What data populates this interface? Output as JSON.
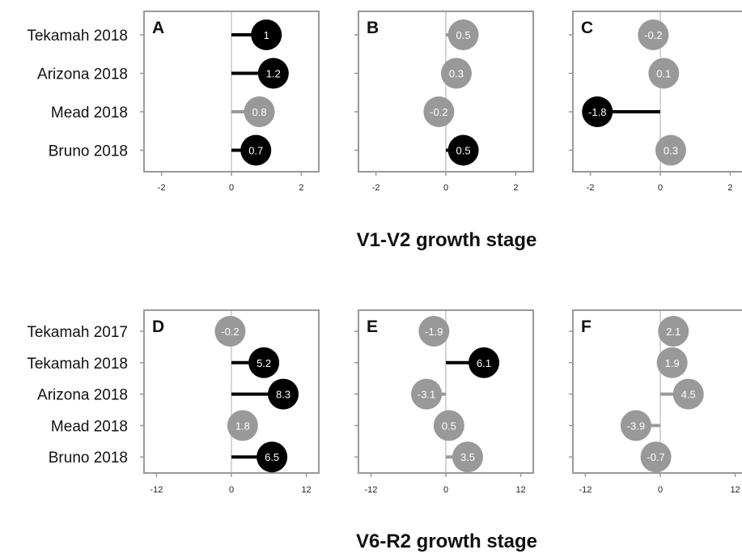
{
  "colors": {
    "significant": "#000000",
    "not_significant": "#999999"
  },
  "chart_data": [
    {
      "type": "lollipop",
      "group_title": "V1-V2 growth stage",
      "xlim": [
        -2.5,
        2.5
      ],
      "xticks": [
        -2,
        0,
        2
      ],
      "categories": [
        "Tekamah 2018",
        "Arizona 2018",
        "Mead 2018",
        "Bruno 2018"
      ],
      "panels": [
        {
          "label": "A",
          "values": [
            1,
            1.2,
            0.8,
            0.7
          ],
          "value_labels": [
            "1",
            "1.2",
            "0.8",
            "0.7"
          ],
          "significant": [
            true,
            true,
            false,
            true
          ]
        },
        {
          "label": "B",
          "values": [
            0.5,
            0.3,
            -0.2,
            0.5
          ],
          "value_labels": [
            "0.5",
            "0.3",
            "-0.2",
            "0.5"
          ],
          "significant": [
            false,
            false,
            false,
            true
          ]
        },
        {
          "label": "C",
          "values": [
            -0.2,
            0.1,
            -1.8,
            0.3
          ],
          "value_labels": [
            "-0.2",
            "0.1",
            "-1.8",
            "0.3"
          ],
          "significant": [
            false,
            false,
            true,
            false
          ]
        }
      ]
    },
    {
      "type": "lollipop",
      "group_title": "V6-R2 growth stage",
      "xlim": [
        -14,
        14
      ],
      "xticks": [
        -12,
        0,
        12
      ],
      "categories": [
        "Tekamah 2017",
        "Tekamah 2018",
        "Arizona 2018",
        "Mead 2018",
        "Bruno 2018"
      ],
      "panels": [
        {
          "label": "D",
          "values": [
            -0.2,
            5.2,
            8.3,
            1.8,
            6.5
          ],
          "value_labels": [
            "-0.2",
            "5.2",
            "8.3",
            "1.8",
            "6.5"
          ],
          "significant": [
            false,
            true,
            true,
            false,
            true
          ]
        },
        {
          "label": "E",
          "values": [
            -1.9,
            6.1,
            -3.1,
            0.5,
            3.5
          ],
          "value_labels": [
            "-1.9",
            "6.1",
            "-3.1",
            "0.5",
            "3.5"
          ],
          "significant": [
            false,
            true,
            false,
            false,
            false
          ]
        },
        {
          "label": "F",
          "values": [
            2.1,
            1.9,
            4.5,
            -3.9,
            -0.7
          ],
          "value_labels": [
            "2.1",
            "1.9",
            "4.5",
            "-3.9",
            "-0.7"
          ],
          "significant": [
            false,
            false,
            false,
            false,
            false
          ]
        }
      ]
    }
  ]
}
